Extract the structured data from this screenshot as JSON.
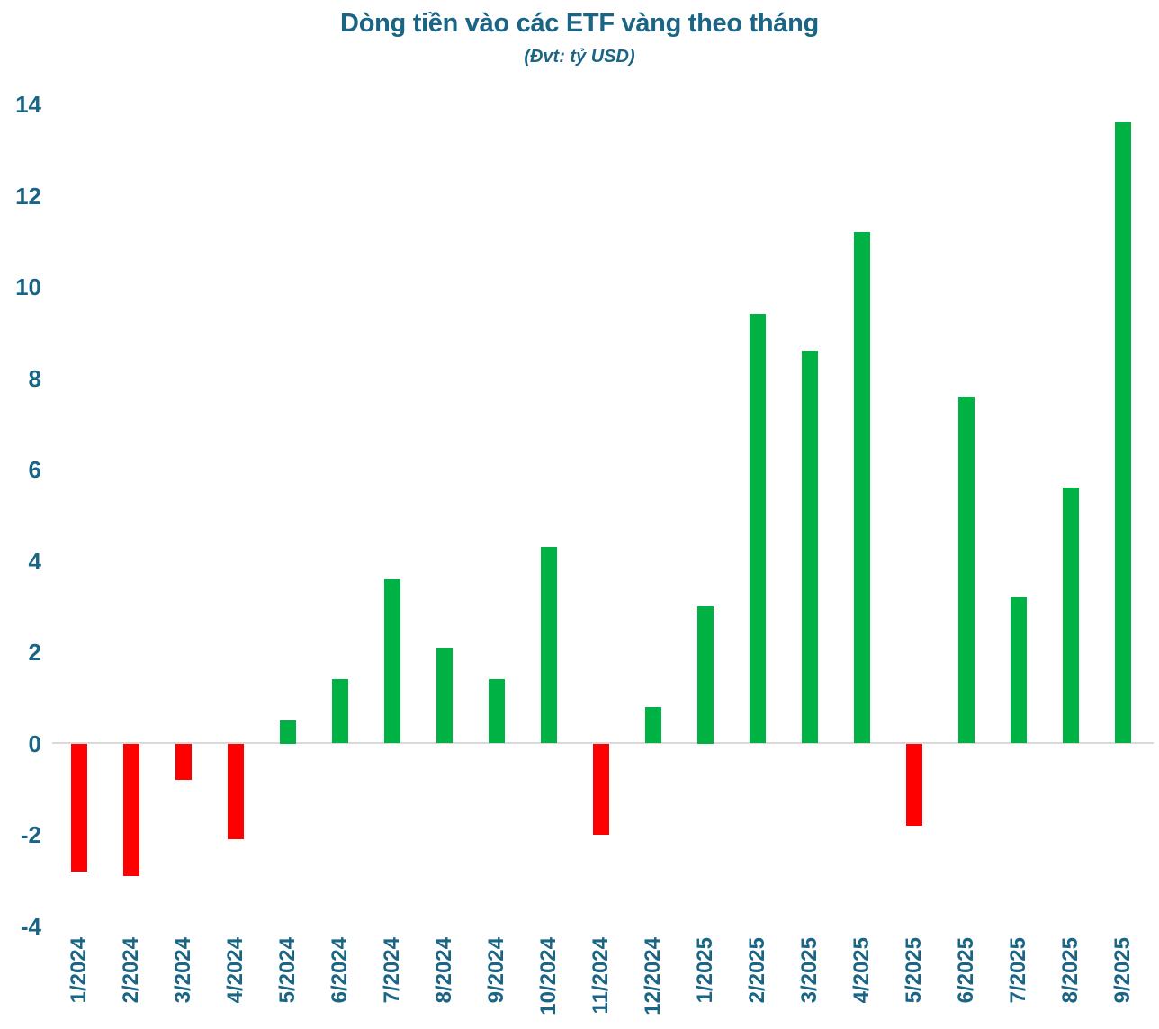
{
  "chart_data": {
    "type": "bar",
    "title": "Dòng tiền vào các ETF vàng theo tháng",
    "subtitle": "(Đvt: tỷ USD)",
    "categories": [
      "1/2024",
      "2/2024",
      "3/2024",
      "4/2024",
      "5/2024",
      "6/2024",
      "7/2024",
      "8/2024",
      "9/2024",
      "10/2024",
      "11/2024",
      "12/2024",
      "1/2025",
      "2/2025",
      "3/2025",
      "4/2025",
      "5/2025",
      "6/2025",
      "7/2025",
      "8/2025",
      "9/2025"
    ],
    "values": [
      -2.8,
      -2.9,
      -0.8,
      -2.1,
      0.5,
      1.4,
      3.6,
      2.1,
      1.4,
      4.3,
      -2.0,
      0.8,
      3.0,
      9.4,
      8.6,
      11.2,
      -1.8,
      7.6,
      3.2,
      5.6,
      13.6
    ],
    "xlabel": "",
    "ylabel": "",
    "ylim": [
      -4,
      14
    ],
    "yticks": [
      14,
      12,
      10,
      8,
      6,
      4,
      2,
      0,
      -2,
      -4
    ],
    "grid": false,
    "legend": "none",
    "positive_color": "#00B144",
    "negative_color": "#FF0000",
    "text_color": "#1A6585",
    "zero_line_color": "#D9D9D9",
    "background_color": "#FFFFFF"
  }
}
